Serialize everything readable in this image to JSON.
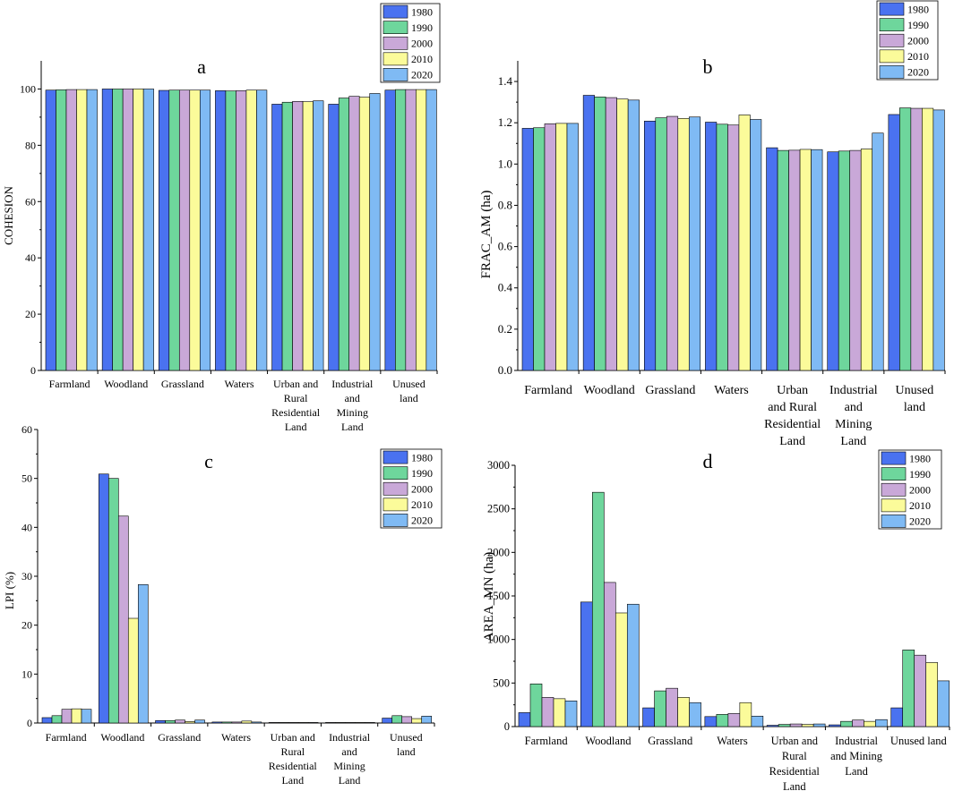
{
  "colors": {
    "1980": "#4a72f0",
    "1990": "#6ed69c",
    "2000": "#c9a8d8",
    "2010": "#fbfb9a",
    "2020": "#7fbaf4"
  },
  "chart_data": [
    {
      "panel": "a",
      "type": "bar",
      "title": "a",
      "xlabel": "",
      "ylabel": "COHESION",
      "ylim": [
        0,
        110
      ],
      "yticks": [
        0,
        20,
        40,
        60,
        80,
        100
      ],
      "ytick_labels": [
        "0",
        "20",
        "40",
        "60",
        "80",
        "100"
      ],
      "legend_position": "top-right",
      "categories": [
        [
          "Farmland"
        ],
        [
          "Woodland"
        ],
        [
          "Grassland"
        ],
        [
          "Waters"
        ],
        [
          "Urban and",
          "Rural",
          "Residential",
          "Land"
        ],
        [
          "Industrial",
          "and",
          "Mining",
          "Land"
        ],
        [
          "Unused",
          "land"
        ]
      ],
      "series": [
        {
          "name": "1980",
          "values": [
            99.6,
            100.0,
            99.5,
            99.4,
            94.6,
            94.6,
            99.6
          ]
        },
        {
          "name": "1990",
          "values": [
            99.7,
            100.0,
            99.6,
            99.3,
            95.3,
            96.8,
            99.8
          ]
        },
        {
          "name": "2000",
          "values": [
            99.8,
            100.0,
            99.6,
            99.4,
            95.6,
            97.4,
            99.8
          ]
        },
        {
          "name": "2010",
          "values": [
            99.8,
            100.0,
            99.6,
            99.6,
            95.5,
            97.1,
            99.8
          ]
        },
        {
          "name": "2020",
          "values": [
            99.8,
            100.0,
            99.6,
            99.6,
            95.8,
            98.4,
            99.8
          ]
        }
      ]
    },
    {
      "panel": "b",
      "type": "bar",
      "title": "b",
      "xlabel": "",
      "ylabel": "FRAC_AM (ha)",
      "ylim": [
        0,
        1.5
      ],
      "yticks": [
        0,
        0.2,
        0.4,
        0.6,
        0.8,
        1.0,
        1.2,
        1.4
      ],
      "ytick_labels": [
        "0.0",
        "0.2",
        "0.4",
        "0.6",
        "0.8",
        "1.0",
        "1.2",
        "1.4"
      ],
      "legend_position": "top-right",
      "categories": [
        [
          "Farmland"
        ],
        [
          "Woodland"
        ],
        [
          "Grassland"
        ],
        [
          "Waters"
        ],
        [
          "Urban",
          "and Rural",
          "Residential",
          "Land"
        ],
        [
          "Industrial",
          "and",
          "Mining",
          "Land"
        ],
        [
          "Unused",
          "land"
        ]
      ],
      "series": [
        {
          "name": "1980",
          "values": [
            1.173,
            1.333,
            1.208,
            1.203,
            1.079,
            1.059,
            1.24
          ]
        },
        {
          "name": "1990",
          "values": [
            1.176,
            1.325,
            1.224,
            1.193,
            1.066,
            1.063,
            1.272
          ]
        },
        {
          "name": "2000",
          "values": [
            1.195,
            1.322,
            1.231,
            1.189,
            1.067,
            1.066,
            1.27
          ]
        },
        {
          "name": "2010",
          "values": [
            1.197,
            1.315,
            1.221,
            1.238,
            1.071,
            1.073,
            1.27
          ]
        },
        {
          "name": "2020",
          "values": [
            1.197,
            1.31,
            1.228,
            1.216,
            1.07,
            1.15,
            1.262
          ]
        }
      ]
    },
    {
      "panel": "c",
      "type": "bar",
      "title": "c",
      "xlabel": "",
      "ylabel": "LPI (%)",
      "ylim": [
        0,
        60
      ],
      "yticks": [
        0,
        10,
        20,
        30,
        40,
        50,
        60
      ],
      "ytick_labels": [
        "0",
        "10",
        "20",
        "30",
        "40",
        "50",
        "60"
      ],
      "legend_position": "top-right",
      "categories": [
        [
          "Farmland"
        ],
        [
          "Woodland"
        ],
        [
          "Grassland"
        ],
        [
          "Waters"
        ],
        [
          "Urban and",
          "Rural",
          "Residential",
          "Land"
        ],
        [
          "Industrial",
          "and",
          "Mining",
          "Land"
        ],
        [
          "Unused",
          "land"
        ]
      ],
      "series": [
        {
          "name": "1980",
          "values": [
            1.1,
            50.9,
            0.5,
            0.2,
            0.0,
            0.0,
            1.0
          ]
        },
        {
          "name": "1990",
          "values": [
            1.5,
            50.0,
            0.5,
            0.2,
            0.0,
            0.0,
            1.5
          ]
        },
        {
          "name": "2000",
          "values": [
            2.8,
            42.3,
            0.6,
            0.2,
            0.0,
            0.0,
            1.3
          ]
        },
        {
          "name": "2010",
          "values": [
            2.9,
            21.4,
            0.3,
            0.4,
            0.0,
            0.0,
            0.9
          ]
        },
        {
          "name": "2020",
          "values": [
            2.8,
            28.3,
            0.6,
            0.2,
            0.0,
            0.0,
            1.4
          ]
        }
      ]
    },
    {
      "panel": "d",
      "type": "bar",
      "title": "d",
      "xlabel": "",
      "ylabel": "AREA_MN (ha)",
      "ylim": [
        0,
        3000
      ],
      "yticks": [
        0,
        500,
        1000,
        1500,
        2000,
        2500,
        3000
      ],
      "ytick_labels": [
        "0",
        "500",
        "1000",
        "1500",
        "2000",
        "2500",
        "3000"
      ],
      "legend_position": "top-right",
      "categories": [
        [
          "Farmland"
        ],
        [
          "Woodland"
        ],
        [
          "Grassland"
        ],
        [
          "Waters"
        ],
        [
          "Urban and",
          "Rural",
          "Residential",
          "Land"
        ],
        [
          "Industrial",
          "and Mining",
          "Land"
        ],
        [
          "Unused land"
        ]
      ],
      "series": [
        {
          "name": "1980",
          "values": [
            160,
            1430,
            215,
            115,
            15,
            20,
            215
          ]
        },
        {
          "name": "1990",
          "values": [
            490,
            2690,
            410,
            140,
            25,
            60,
            880
          ]
        },
        {
          "name": "2000",
          "values": [
            335,
            1655,
            440,
            150,
            30,
            75,
            820
          ]
        },
        {
          "name": "2010",
          "values": [
            320,
            1305,
            335,
            275,
            25,
            60,
            735
          ]
        },
        {
          "name": "2020",
          "values": [
            295,
            1405,
            275,
            120,
            30,
            80,
            525
          ]
        }
      ]
    }
  ]
}
